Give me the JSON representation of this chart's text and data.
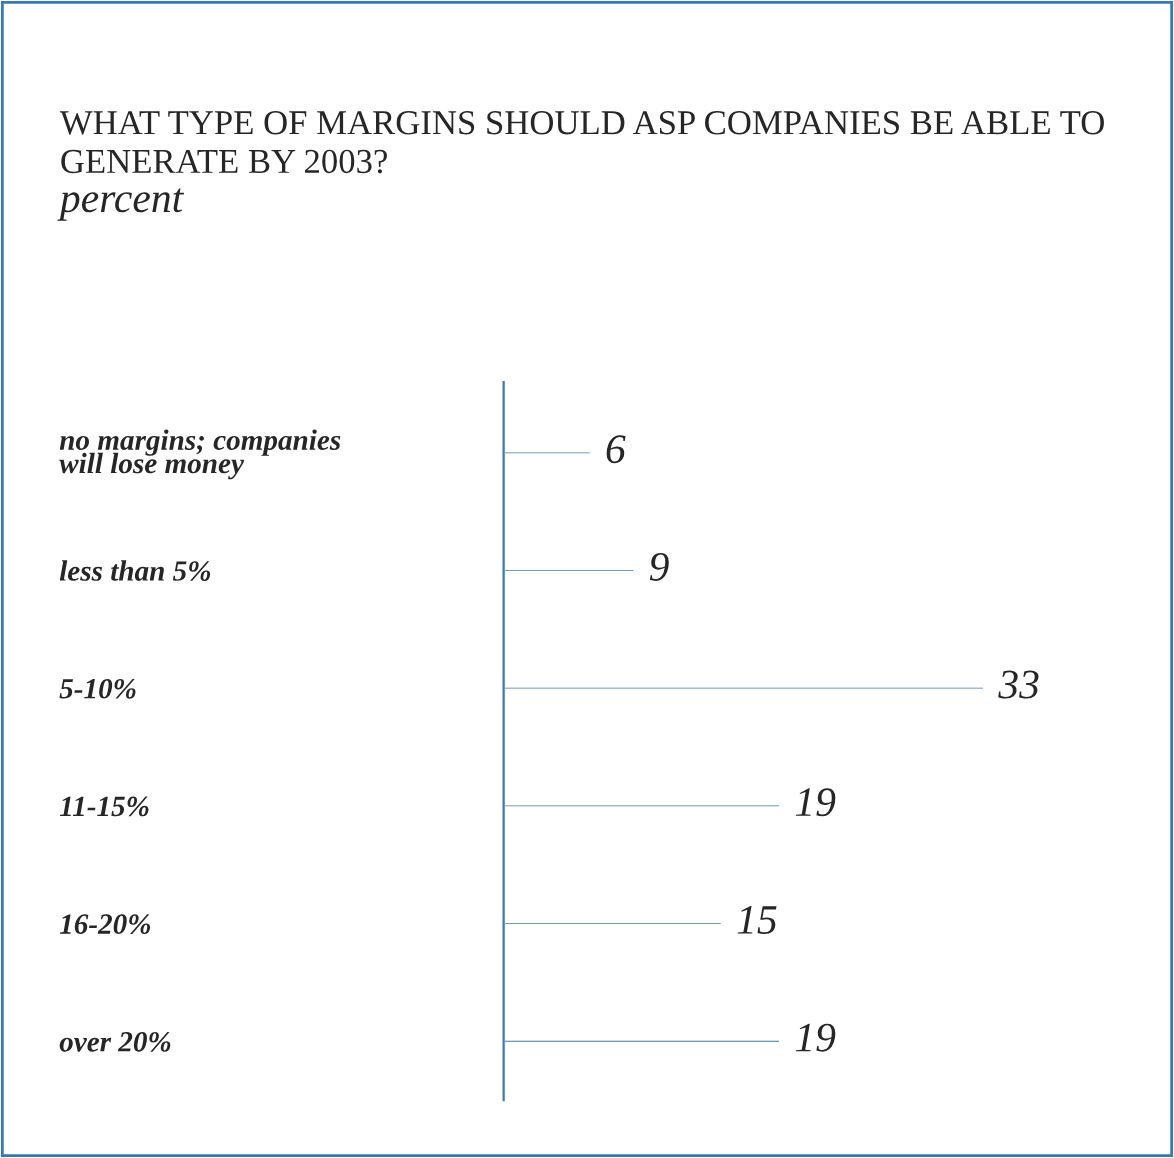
{
  "chart_data": {
    "type": "bar",
    "orientation": "horizontal",
    "title": "WHAT TYPE OF MARGINS SHOULD ASP COMPANIES BE ABLE TO GENERATE BY 2003?",
    "subtitle": "percent",
    "categories": [
      "no margins; companies\nwill lose money",
      "less than 5%",
      "5-10%",
      "11-15%",
      "16-20%",
      "over 20%"
    ],
    "values": [
      6,
      9,
      33,
      19,
      15,
      19
    ],
    "color": "#3a78b5",
    "data_labels": true,
    "grid": false,
    "legend": false
  }
}
